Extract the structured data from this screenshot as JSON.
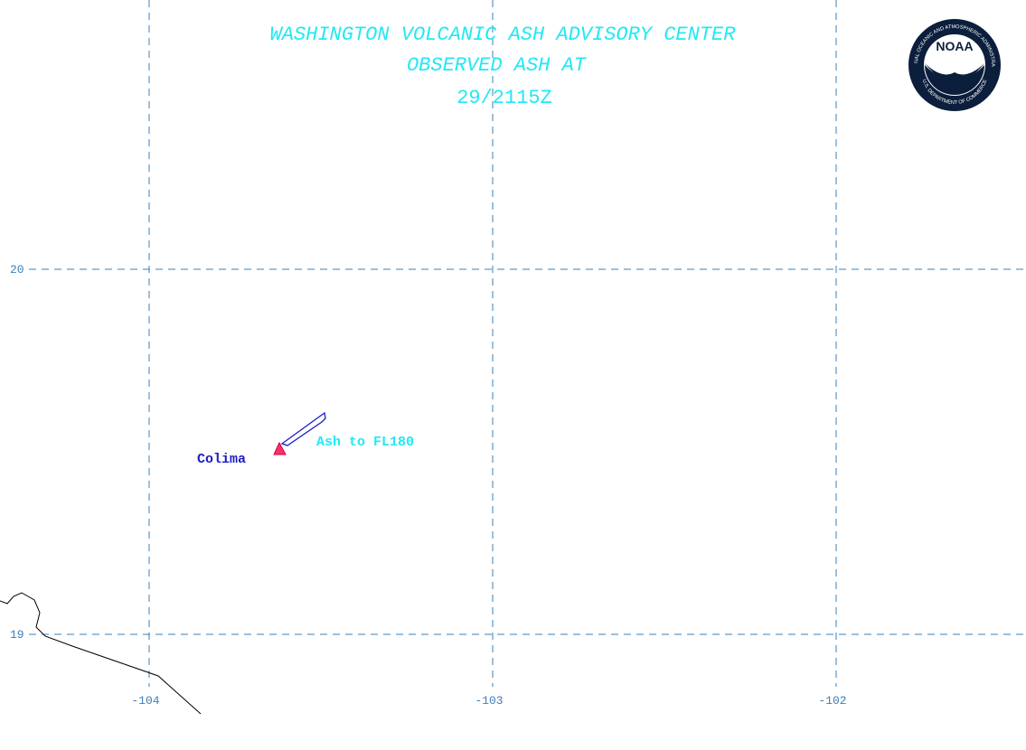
{
  "header": {
    "lines": [
      "WASHINGTON VOLCANIC ASH ADVISORY CENTER",
      "OBSERVED ASH AT",
      "29/2115Z"
    ]
  },
  "grid": {
    "longitudes": [
      -104,
      -103,
      -102
    ],
    "latitudes": [
      20,
      19
    ]
  },
  "volcano": {
    "name": "Colima"
  },
  "ash": {
    "label": "Ash to FL180"
  },
  "logo": {
    "acronym": "NOAA",
    "upper_ring": "NATIONAL OCEANIC AND ATMOSPHERIC ADMINISTRATION",
    "lower_ring": "U.S. DEPARTMENT OF COMMERCE"
  }
}
